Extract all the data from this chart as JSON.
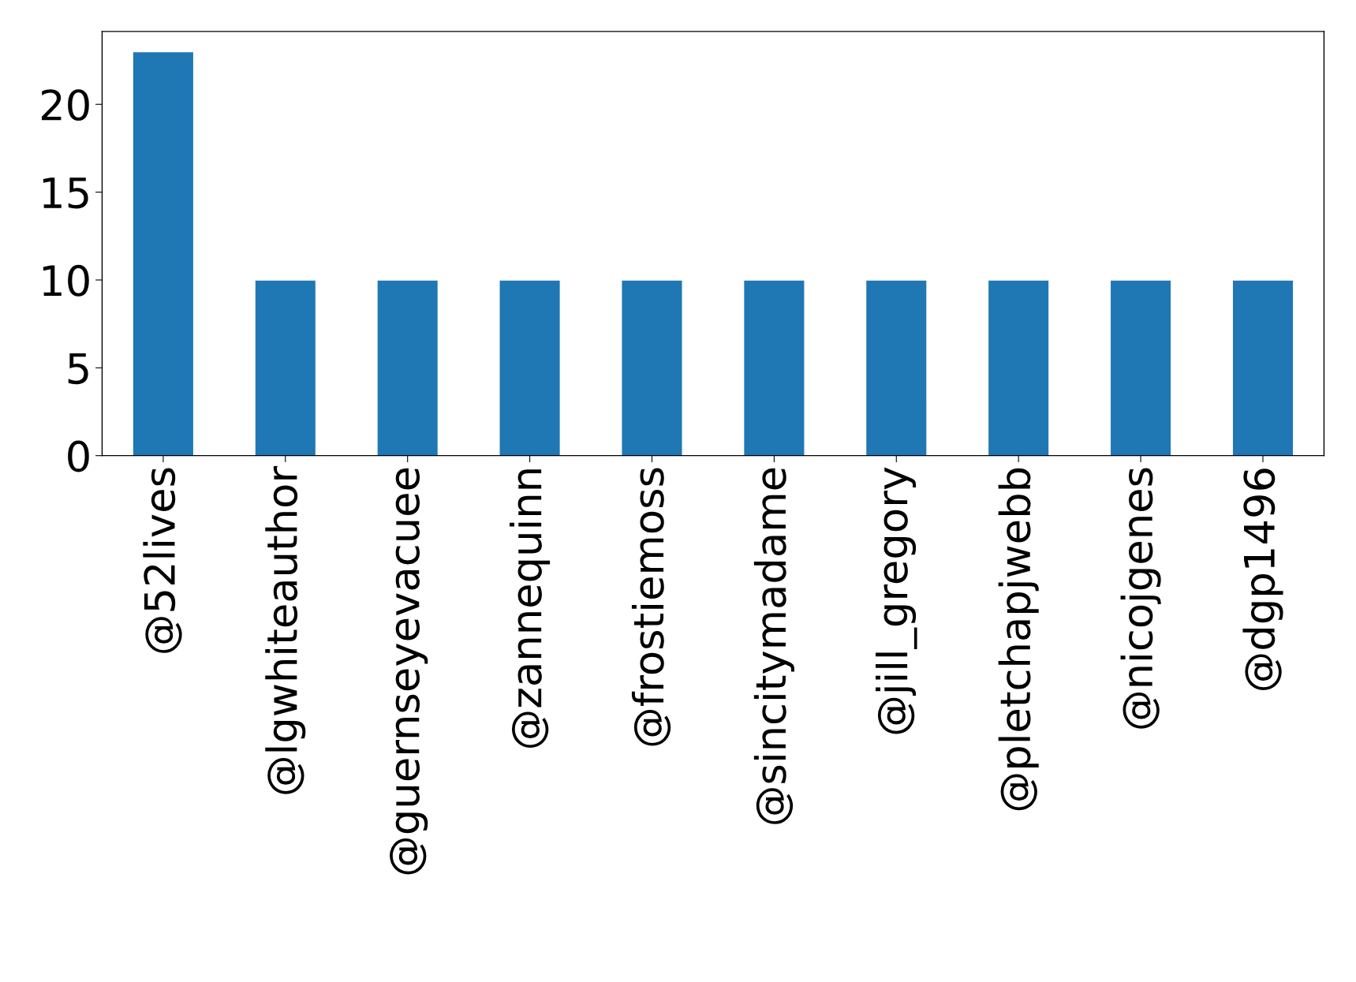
{
  "chart_data": {
    "type": "bar",
    "categories": [
      "@52lives",
      "@lgwhiteauthor",
      "@guernseyevacuee",
      "@zannequinn",
      "@frostiemoss",
      "@sincitymadame",
      "@jill_gregory",
      "@pletchapjwebb",
      "@nicojgenes",
      "@dgp1496"
    ],
    "values": [
      23,
      10,
      10,
      10,
      10,
      10,
      10,
      10,
      10,
      10
    ],
    "color": "#1f77b4",
    "ylim": [
      0,
      24.15
    ],
    "yticks": [
      0,
      5,
      10,
      15,
      20
    ],
    "grid": false
  }
}
